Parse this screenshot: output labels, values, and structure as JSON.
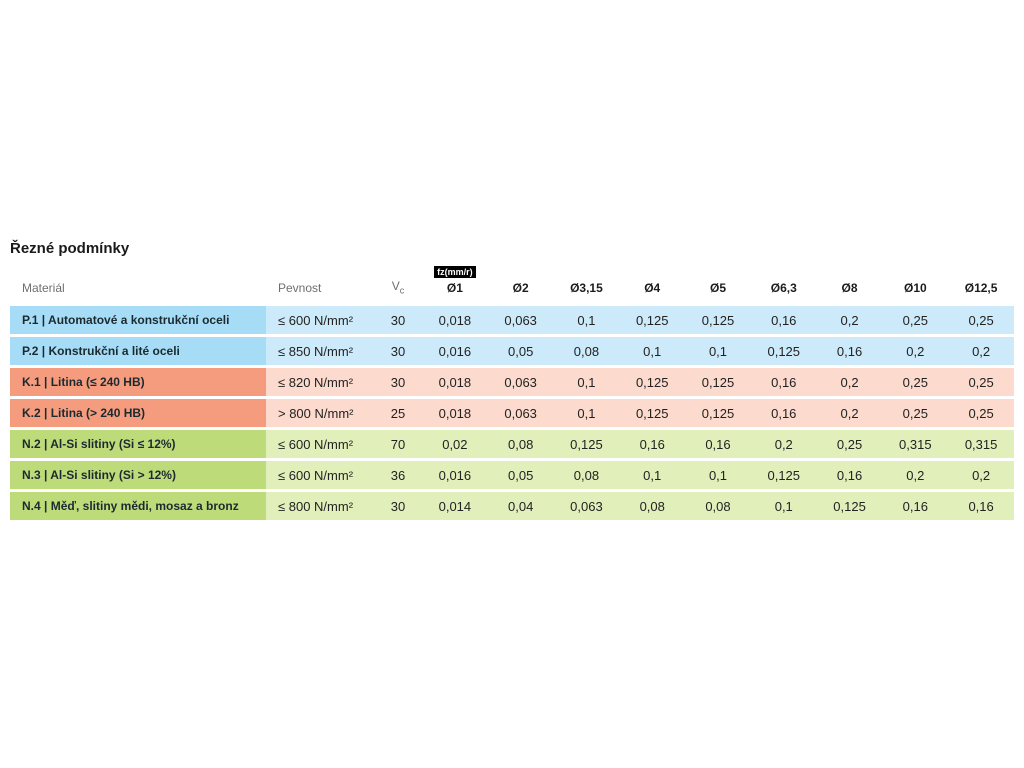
{
  "page": {
    "title": "Řezné podmínky"
  },
  "colors": {
    "P": {
      "label": "#a6dcf5",
      "row": "#cdeafa"
    },
    "K": {
      "label": "#f59c7e",
      "row": "#fcdacd"
    },
    "N": {
      "label": "#bedb79",
      "row": "#e1efbb"
    }
  },
  "table": {
    "headers": {
      "material": "Materiál",
      "pevnost": "Pevnost",
      "vc_main": "V",
      "vc_sub": "c",
      "fz_badge": "fz(mm/r)",
      "diameters": [
        "Ø1",
        "Ø2",
        "Ø3,15",
        "Ø4",
        "Ø5",
        "Ø6,3",
        "Ø8",
        "Ø10",
        "Ø12,5"
      ]
    },
    "rows": [
      {
        "group": "P",
        "label": "P.1 | Automatové a konstrukční oceli",
        "pevnost": "≤ 600 N/mm²",
        "vc": "30",
        "values": [
          "0,018",
          "0,063",
          "0,1",
          "0,125",
          "0,125",
          "0,16",
          "0,2",
          "0,25",
          "0,25"
        ]
      },
      {
        "group": "P",
        "label": "P.2 | Konstrukční a lité oceli",
        "pevnost": "≤ 850 N/mm²",
        "vc": "30",
        "values": [
          "0,016",
          "0,05",
          "0,08",
          "0,1",
          "0,1",
          "0,125",
          "0,16",
          "0,2",
          "0,2"
        ]
      },
      {
        "group": "K",
        "label": "K.1 | Litina (≤ 240 HB)",
        "pevnost": "≤ 820 N/mm²",
        "vc": "30",
        "values": [
          "0,018",
          "0,063",
          "0,1",
          "0,125",
          "0,125",
          "0,16",
          "0,2",
          "0,25",
          "0,25"
        ]
      },
      {
        "group": "K",
        "label": "K.2 | Litina (> 240 HB)",
        "pevnost": "> 800 N/mm²",
        "vc": "25",
        "values": [
          "0,018",
          "0,063",
          "0,1",
          "0,125",
          "0,125",
          "0,16",
          "0,2",
          "0,25",
          "0,25"
        ]
      },
      {
        "group": "N",
        "label": "N.2 | Al-Si slitiny (Si ≤ 12%)",
        "pevnost": "≤ 600 N/mm²",
        "vc": "70",
        "values": [
          "0,02",
          "0,08",
          "0,125",
          "0,16",
          "0,16",
          "0,2",
          "0,25",
          "0,315",
          "0,315"
        ]
      },
      {
        "group": "N",
        "label": "N.3 | Al-Si slitiny (Si > 12%)",
        "pevnost": "≤ 600 N/mm²",
        "vc": "36",
        "values": [
          "0,016",
          "0,05",
          "0,08",
          "0,1",
          "0,1",
          "0,125",
          "0,16",
          "0,2",
          "0,2"
        ]
      },
      {
        "group": "N",
        "label": "N.4 | Měď, slitiny mědi, mosaz a bronz",
        "pevnost": "≤ 800 N/mm²",
        "vc": "30",
        "values": [
          "0,014",
          "0,04",
          "0,063",
          "0,08",
          "0,08",
          "0,1",
          "0,125",
          "0,16",
          "0,16"
        ]
      }
    ]
  }
}
